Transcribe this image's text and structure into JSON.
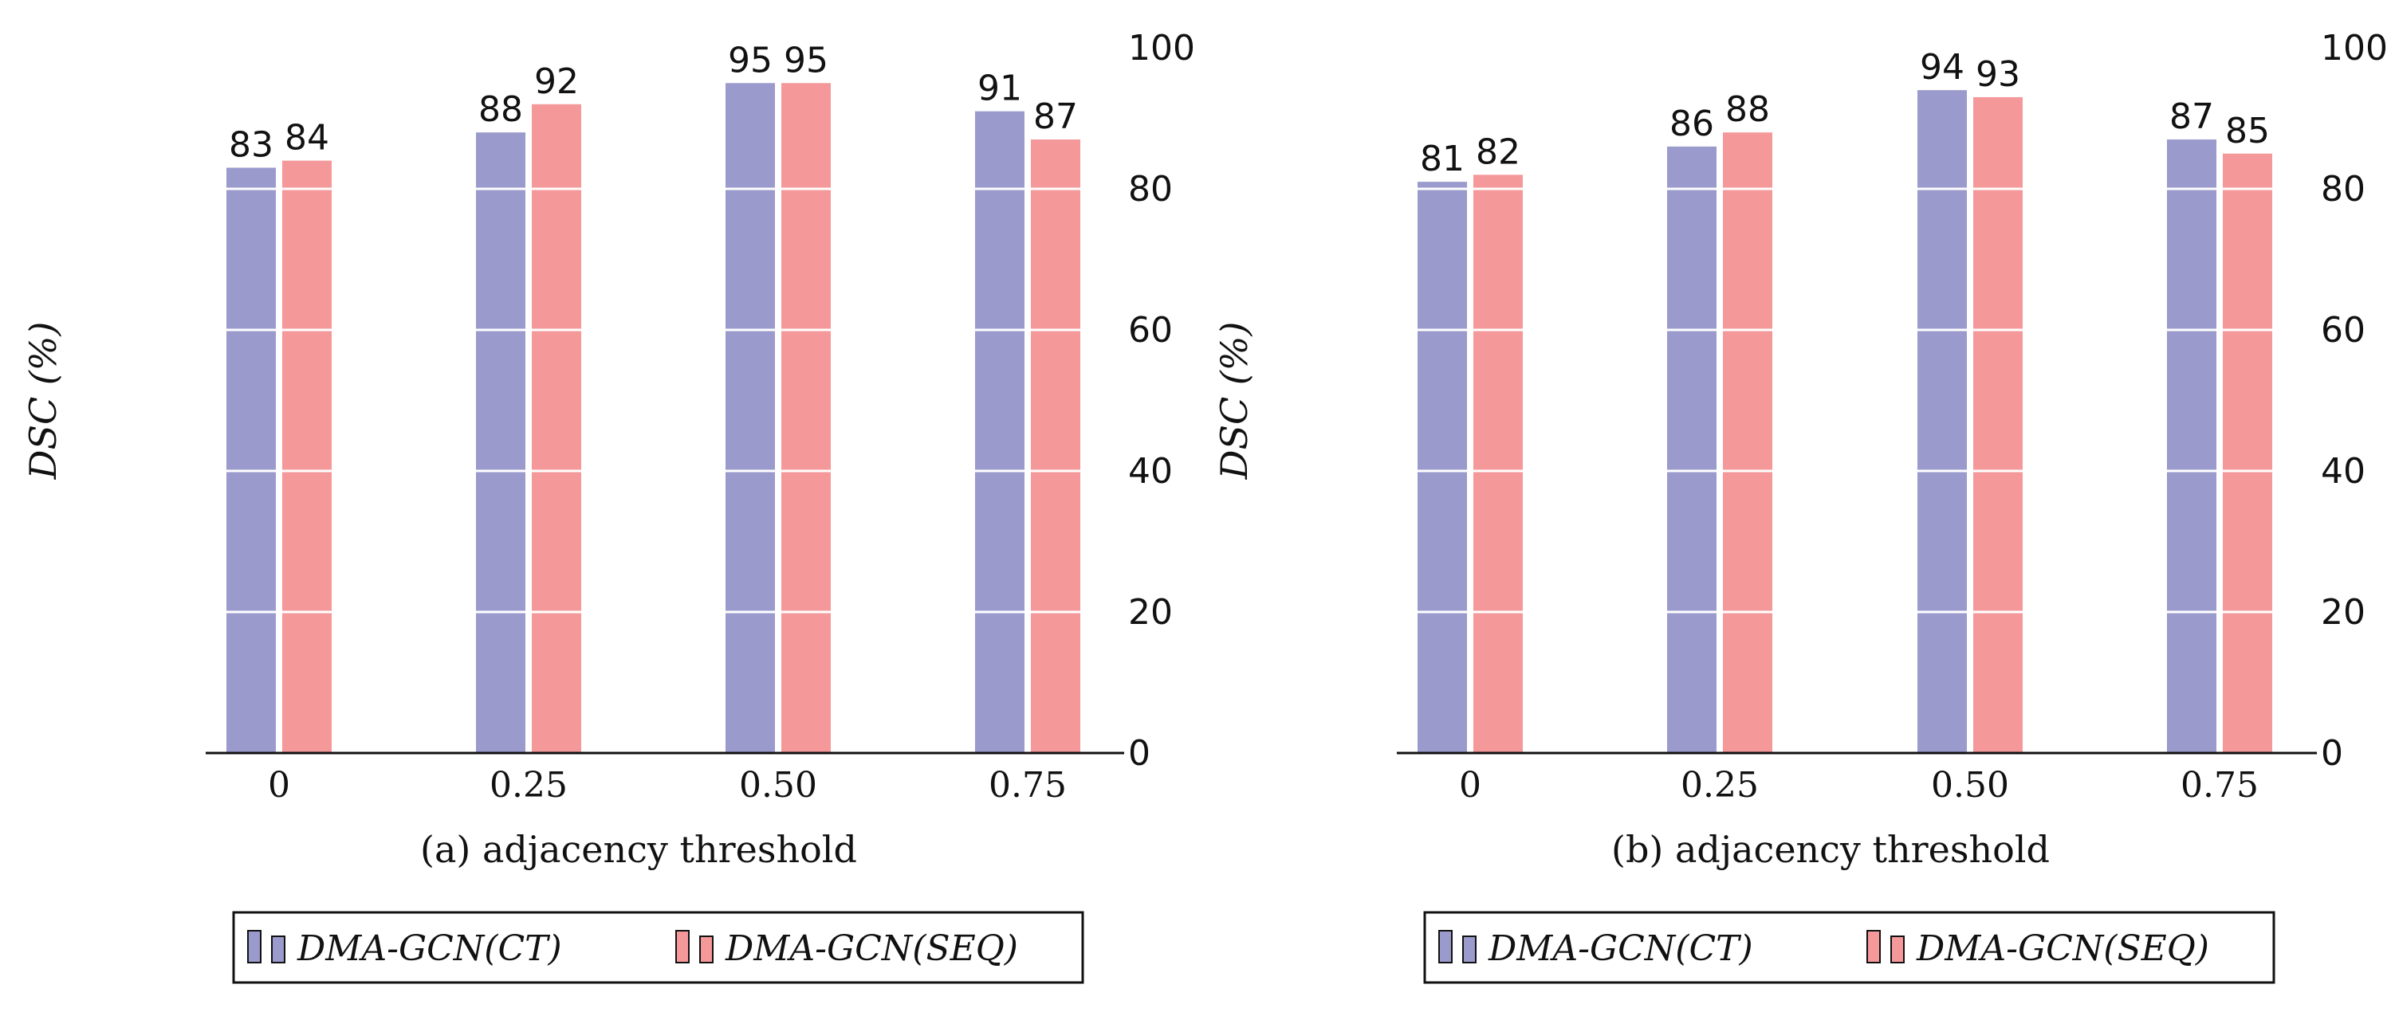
{
  "chart_data": [
    {
      "type": "bar",
      "categories": [
        "0",
        "0.25",
        "0.50",
        "0.75"
      ],
      "series": [
        {
          "name": "DMA-GCN(CT)",
          "values": [
            83,
            88,
            95,
            91
          ]
        },
        {
          "name": "DMA-GCN(SEQ)",
          "values": [
            84,
            92,
            95,
            87
          ]
        }
      ],
      "xlabel": "(a) adjacency threshold",
      "ylabel": "DSC (%)",
      "ylim": [
        0,
        100
      ],
      "yticks": [
        "0",
        "20",
        "40",
        "60",
        "80",
        "100"
      ],
      "grid": true,
      "legend": "bottom-center"
    },
    {
      "type": "bar",
      "categories": [
        "0",
        "0.25",
        "0.50",
        "0.75"
      ],
      "series": [
        {
          "name": "DMA-GCN(CT)",
          "values": [
            81,
            86,
            94,
            87
          ]
        },
        {
          "name": "DMA-GCN(SEQ)",
          "values": [
            82,
            88,
            93,
            85
          ]
        }
      ],
      "xlabel": "(b) adjacency threshold",
      "ylabel": "DSC (%)",
      "ylim": [
        0,
        100
      ],
      "yticks": [
        "0",
        "20",
        "40",
        "60",
        "80",
        "100"
      ],
      "grid": true,
      "legend": "bottom-center"
    }
  ],
  "colors": {
    "ct": "#9a9acc",
    "seq": "#f4989a",
    "axis": "#111111"
  }
}
